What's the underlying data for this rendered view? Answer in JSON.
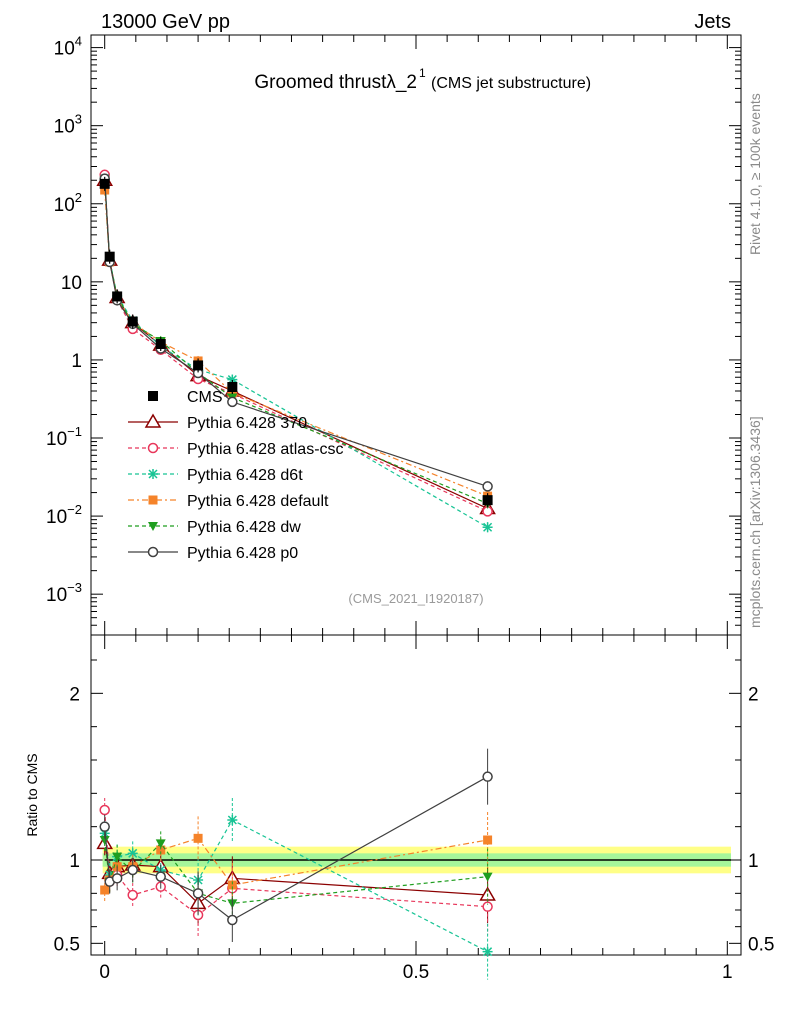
{
  "header": {
    "energy_label": "13000 GeV pp",
    "category_label": "Jets"
  },
  "side": {
    "rivet_label": "Rivet 4.1.0, ≥ 100k events",
    "mcplots_label": "mcplots.cern.ch [arXiv:1306.3436]"
  },
  "chart_data": {
    "type": "line",
    "title": "Groomed thrustλ_2",
    "title_sup": "1",
    "subtitle": "(CMS jet substructure)",
    "analysis_label": "(CMS_2021_I1920187)",
    "xlabel": "",
    "ylabel_ratio": "Ratio to CMS",
    "xlim": [
      -0.022,
      1.022
    ],
    "ylim_main": [
      0.0003,
      14500
    ],
    "ylim_ratio": [
      0.43,
      2.35
    ],
    "yscale_main": "log",
    "x_ticks": [
      "0",
      "0.5",
      "1"
    ],
    "x_tick_values": [
      0,
      0.5,
      1
    ],
    "y_ticks_main": [
      "10⁻³",
      "10⁻²",
      "10⁻¹",
      "1",
      "10",
      "10²",
      "10³",
      "10⁴"
    ],
    "y_tick_values_main": [
      0.001,
      0.01,
      0.1,
      1,
      10,
      100,
      1000,
      10000
    ],
    "y_ticks_ratio": [
      "0.5",
      "1",
      "2"
    ],
    "y_tick_values_ratio": [
      0.5,
      1,
      2
    ],
    "legend_position": "center-left",
    "x": [
      0.0,
      0.008,
      0.02,
      0.045,
      0.09,
      0.15,
      0.205,
      0.615
    ],
    "data": {
      "name": "CMS",
      "values": [
        180,
        21,
        6.5,
        3.1,
        1.6,
        0.85,
        0.45,
        0.016
      ],
      "band_total": 0.08,
      "band_stat": 0.04
    },
    "series": [
      {
        "name": "Pythia 6.428 370",
        "color": "#8b0000",
        "marker": "open-triangle",
        "dash": "none",
        "values": [
          200,
          19,
          6.3,
          3.0,
          1.55,
          0.63,
          0.4,
          0.0125
        ],
        "ratio": [
          1.1,
          0.92,
          0.96,
          0.97,
          0.96,
          0.74,
          0.89,
          0.79
        ]
      },
      {
        "name": "Pythia 6.428 atlas-csc",
        "color": "#e8365a",
        "marker": "open-circle",
        "dash": "4,3",
        "values": [
          235,
          18,
          5.9,
          2.5,
          1.35,
          0.57,
          0.37,
          0.0115
        ],
        "ratio": [
          1.3,
          0.87,
          0.91,
          0.79,
          0.84,
          0.67,
          0.83,
          0.72
        ]
      },
      {
        "name": "Pythia 6.428 d6t",
        "color": "#18c495",
        "marker": "asterisk",
        "dash": "4,3",
        "values": [
          210,
          19,
          6.6,
          3.2,
          1.5,
          0.75,
          0.56,
          0.0072
        ],
        "ratio": [
          1.16,
          0.91,
          1.02,
          1.04,
          0.94,
          0.88,
          1.24,
          0.45
        ]
      },
      {
        "name": "Pythia 6.428 default",
        "color": "#f5832a",
        "marker": "filled-square",
        "dash": "6,3,2,3",
        "values": [
          150,
          18,
          6.2,
          3.0,
          1.7,
          0.97,
          0.38,
          0.018
        ],
        "ratio": [
          0.82,
          0.88,
          0.96,
          0.96,
          1.06,
          1.13,
          0.85,
          1.12
        ]
      },
      {
        "name": "Pythia 6.428 dw",
        "color": "#1f9e1f",
        "marker": "filled-triangle-down",
        "dash": "4,3",
        "values": [
          200,
          18,
          6.6,
          2.9,
          1.75,
          0.68,
          0.33,
          0.0145
        ],
        "ratio": [
          1.12,
          0.87,
          1.02,
          0.93,
          1.1,
          0.8,
          0.74,
          0.9
        ]
      },
      {
        "name": "Pythia 6.428 p0",
        "color": "#404040",
        "marker": "open-circle",
        "dash": "none",
        "values": [
          210,
          18,
          5.8,
          2.9,
          1.4,
          0.68,
          0.29,
          0.024
        ],
        "ratio": [
          1.2,
          0.87,
          0.89,
          0.94,
          0.9,
          0.8,
          0.64,
          1.5
        ]
      }
    ]
  }
}
